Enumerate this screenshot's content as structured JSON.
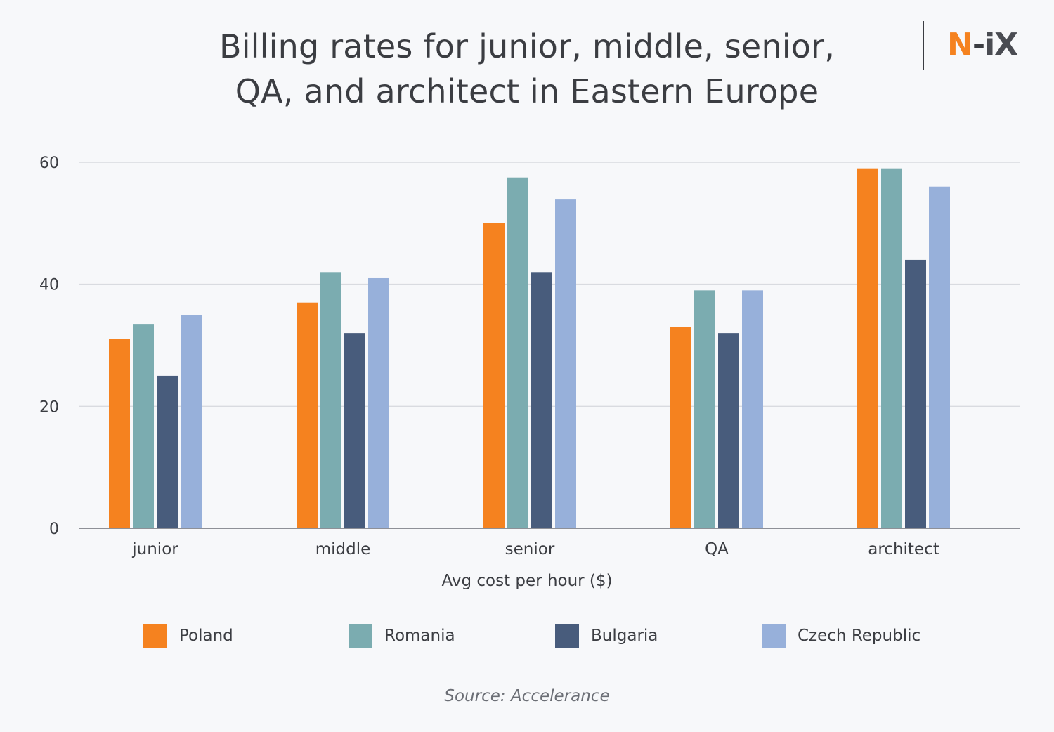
{
  "header": {
    "title_line1": "Billing rates for junior, middle, senior,",
    "title_line2": "QA, and architect in Eastern Europe",
    "logo": {
      "n": "N",
      "dash": "-",
      "ix": "iX",
      "brand_color": "#f5821f"
    }
  },
  "chart_data": {
    "type": "bar",
    "title": "Billing rates for junior, middle, senior, QA, and architect in Eastern Europe",
    "categories": [
      "junior",
      "middle",
      "senior",
      "QA",
      "architect"
    ],
    "series": [
      {
        "name": "Poland",
        "color": "#f5821f",
        "values": [
          31,
          37,
          50,
          33,
          59
        ]
      },
      {
        "name": "Romania",
        "color": "#7bacb0",
        "values": [
          33.5,
          42,
          57.5,
          39,
          59
        ]
      },
      {
        "name": "Bulgaria",
        "color": "#485c7c",
        "values": [
          25,
          32,
          42,
          32,
          44
        ]
      },
      {
        "name": "Czech Republic",
        "color": "#97b0da",
        "values": [
          35,
          41,
          54,
          39,
          56
        ]
      }
    ],
    "xlabel": "Avg cost per hour ($)",
    "ylabel": "",
    "ylim": [
      0,
      60
    ],
    "yticks": [
      0,
      20,
      40,
      60
    ],
    "grid": true,
    "legend_position": "bottom"
  },
  "footer": {
    "source": "Source: Accelerance"
  }
}
